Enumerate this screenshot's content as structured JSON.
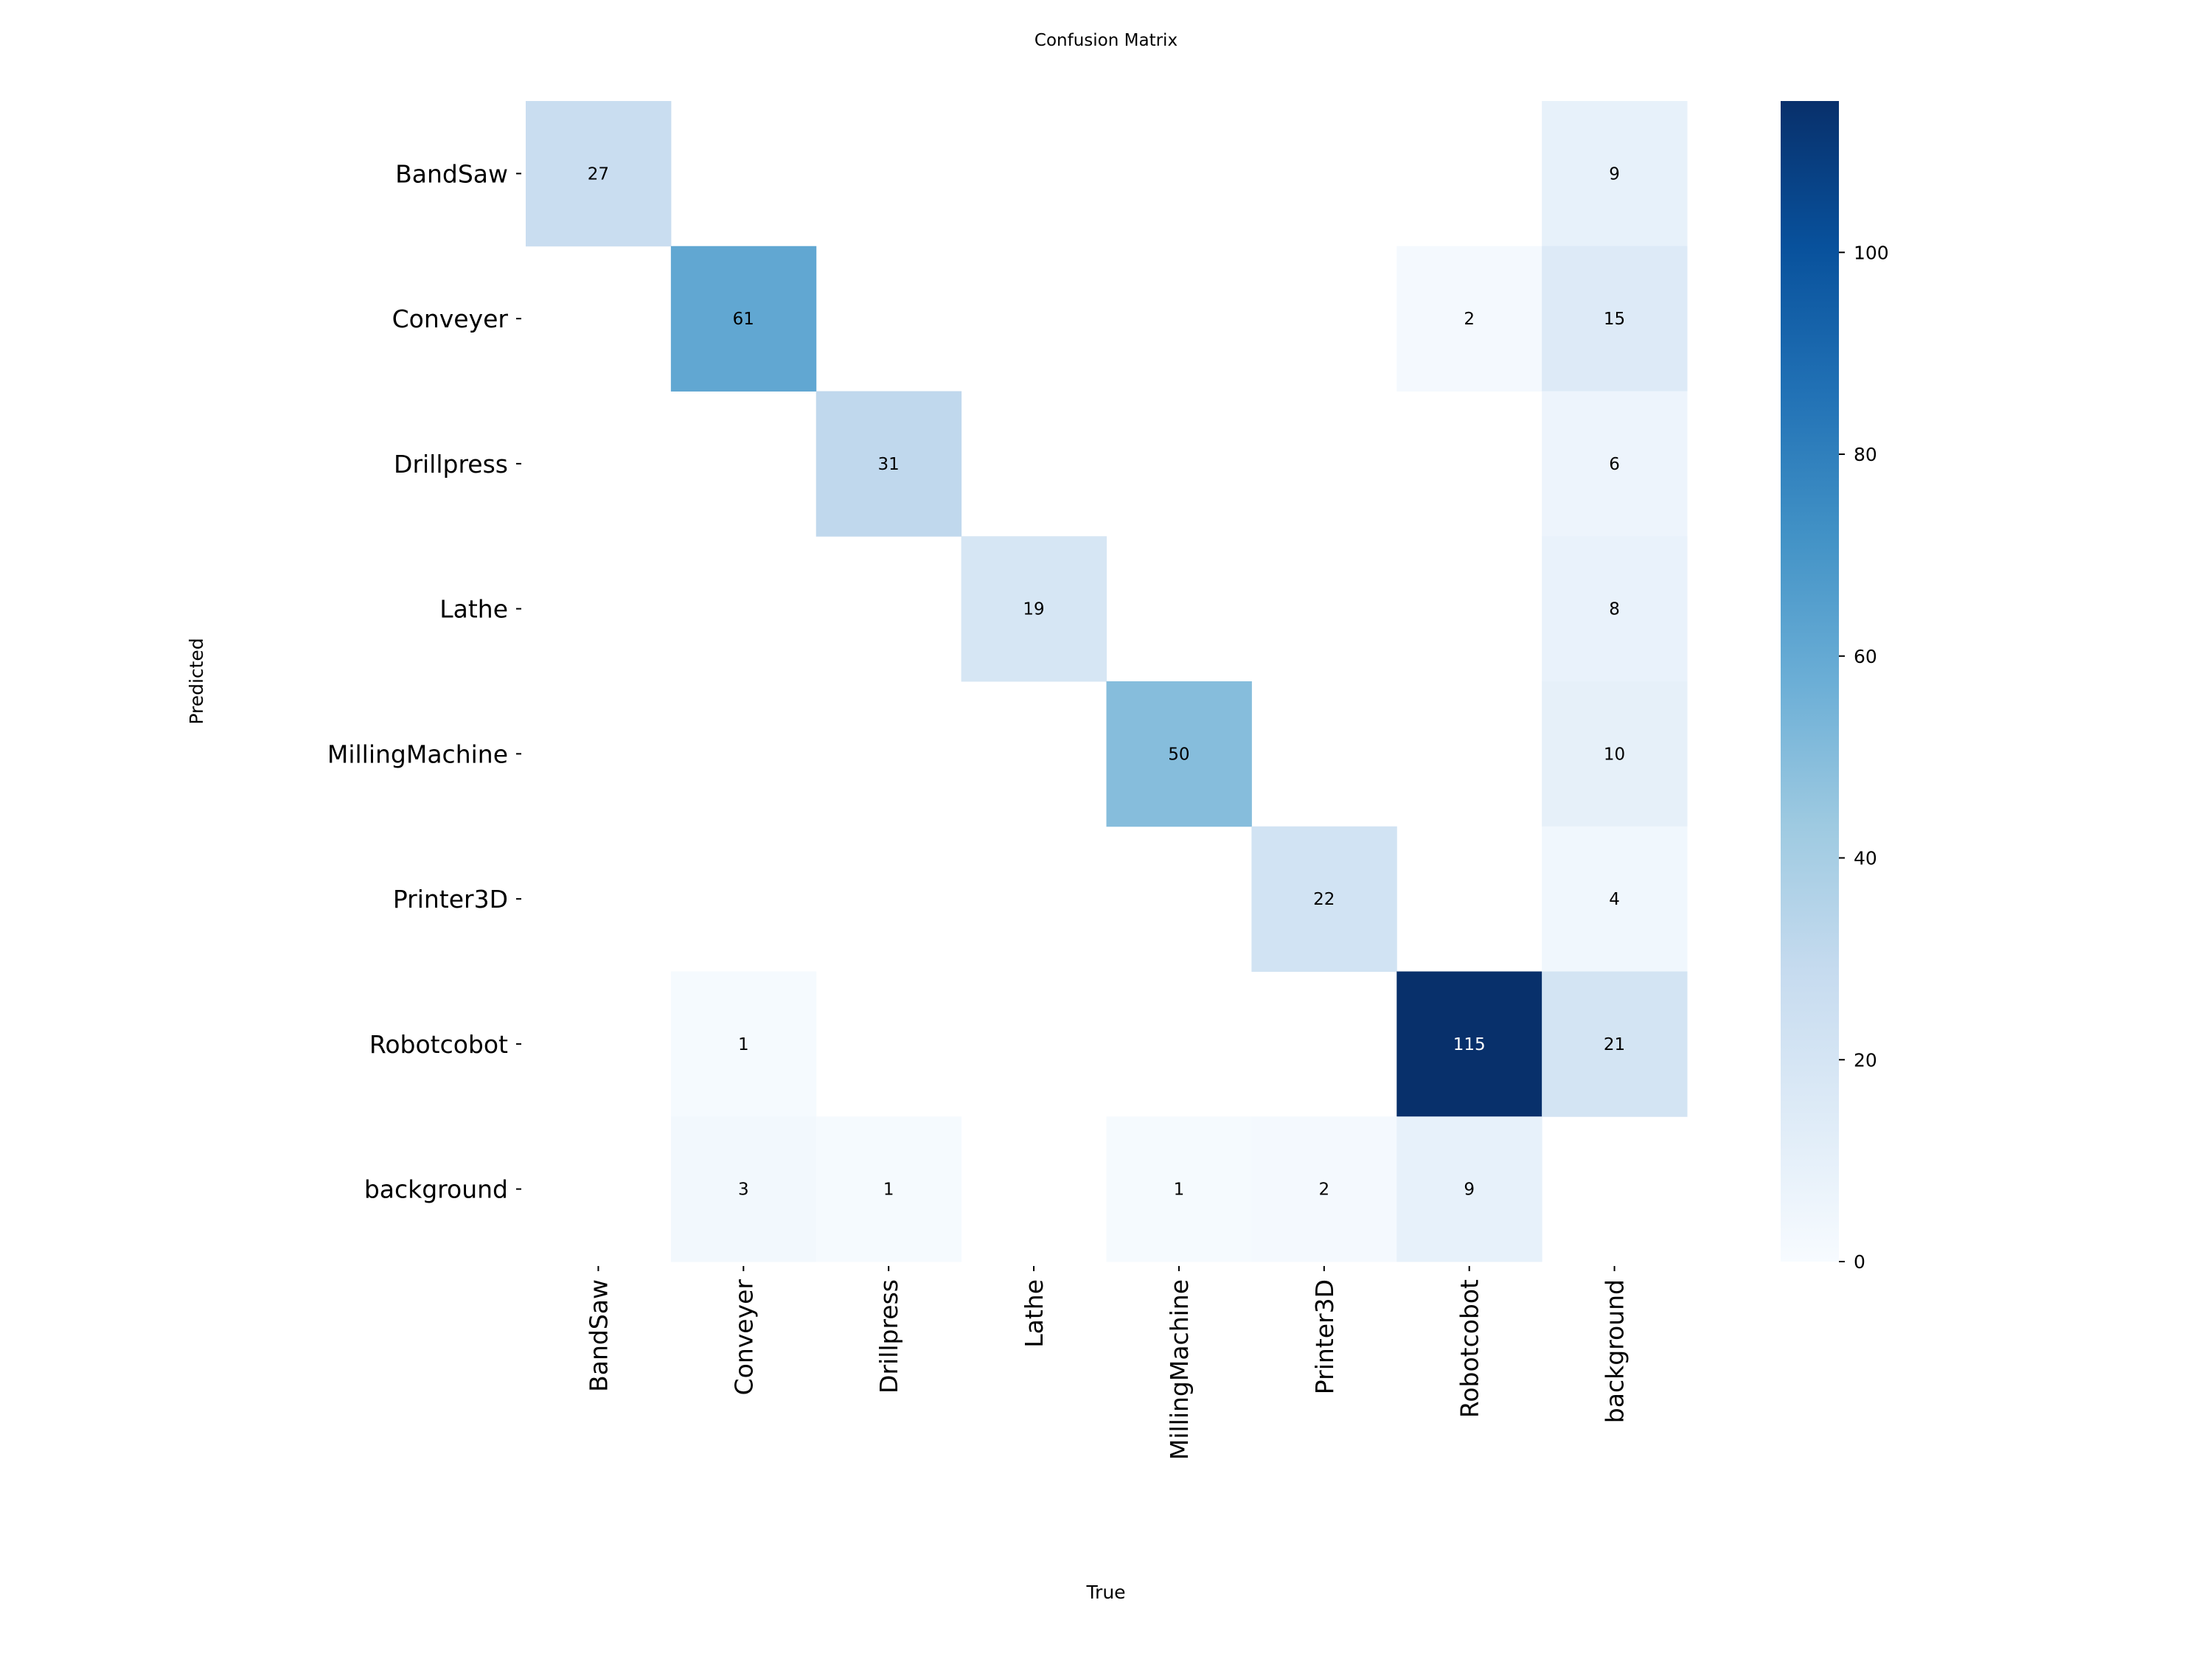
{
  "chart_data": {
    "type": "heatmap",
    "title": "Confusion Matrix",
    "xlabel": "True",
    "ylabel": "Predicted",
    "x_categories": [
      "BandSaw",
      "Conveyer",
      "Drillpress",
      "Lathe",
      "MillingMachine",
      "Printer3D",
      "Robotcobot",
      "background"
    ],
    "y_categories": [
      "BandSaw",
      "Conveyer",
      "Drillpress",
      "Lathe",
      "MillingMachine",
      "Printer3D",
      "Robotcobot",
      "background"
    ],
    "values": [
      [
        27,
        null,
        null,
        null,
        null,
        null,
        null,
        9
      ],
      [
        null,
        61,
        null,
        null,
        null,
        null,
        2,
        15
      ],
      [
        null,
        null,
        31,
        null,
        null,
        null,
        null,
        6
      ],
      [
        null,
        null,
        null,
        19,
        null,
        null,
        null,
        8
      ],
      [
        null,
        null,
        null,
        null,
        50,
        null,
        null,
        10
      ],
      [
        null,
        null,
        null,
        null,
        null,
        22,
        null,
        4
      ],
      [
        null,
        1,
        null,
        null,
        null,
        null,
        115,
        21
      ],
      [
        null,
        3,
        1,
        null,
        1,
        2,
        9,
        null
      ]
    ],
    "colormap": "Blues",
    "colorbar": {
      "range": [
        0,
        115
      ],
      "ticks": [
        "0",
        "20",
        "40",
        "60",
        "80",
        "100"
      ]
    },
    "grid": false
  }
}
